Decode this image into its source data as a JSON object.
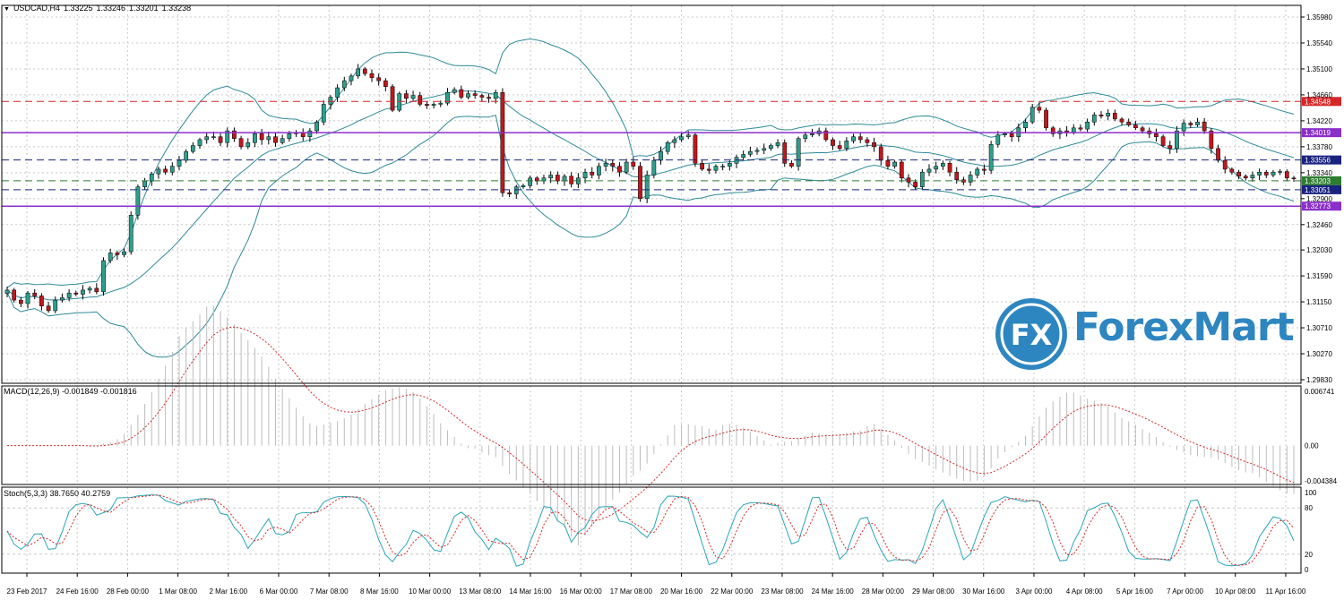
{
  "main_pane": {
    "symbol": "USDCAD,H4",
    "open": "1.33225",
    "high": "1.33246",
    "low": "1.33201",
    "close": "1.33238"
  },
  "macd_pane": {
    "label": "MACD(12,26,9) -0.001849 -0.001816"
  },
  "stoch_pane": {
    "label": "Stoch(5,3,3) 38.7650 40.2759"
  },
  "logo": {
    "brand": "ForexMart",
    "mark": "FX"
  },
  "colors": {
    "background": "#ffffff",
    "grid": "#c8c8c8",
    "bull_candle": "#2e9e8c",
    "bear_candle": "#c0171d",
    "bollinger": "#2e8b99",
    "resistance_red": "#d62728",
    "level_purple": "#8b2fc9",
    "level_navy": "#1a237e",
    "level_green": "#2e7d32",
    "macd_signal": "#d62728",
    "stoch_main": "#2aa6b8",
    "stoch_signal": "#d62728",
    "brand_blue": "#2e86c1"
  },
  "chart_data": [
    {
      "type": "candlestick",
      "title": "USDCAD,H4",
      "y_ticks": [
        "1.35980",
        "1.35540",
        "1.35100",
        "1.34660",
        "1.34220",
        "1.33780",
        "1.33340",
        "1.32900",
        "1.32460",
        "1.32030",
        "1.31590",
        "1.31150",
        "1.30710",
        "1.30270",
        "1.29830"
      ],
      "ylim": [
        1.2983,
        1.3598
      ],
      "x_ticks": [
        "23 Feb 2017",
        "24 Feb 16:00",
        "28 Feb 00:00",
        "1 Mar 08:00",
        "2 Mar 16:00",
        "6 Mar 00:00",
        "7 Mar 08:00",
        "8 Mar 16:00",
        "10 Mar 00:00",
        "13 Mar 08:00",
        "14 Mar 16:00",
        "16 Mar 00:00",
        "17 Mar 08:00",
        "20 Mar 16:00",
        "22 Mar 00:00",
        "23 Mar 08:00",
        "24 Mar 16:00",
        "28 Mar 00:00",
        "29 Mar 08:00",
        "30 Mar 16:00",
        "3 Apr 00:00",
        "4 Apr 08:00",
        "5 Apr 16:00",
        "7 Apr 00:00",
        "10 Apr 08:00",
        "11 Apr 16:00"
      ],
      "close_series": [
        1.3135,
        1.3118,
        1.3112,
        1.313,
        1.3125,
        1.3108,
        1.31,
        1.3118,
        1.3122,
        1.313,
        1.3128,
        1.3135,
        1.3138,
        1.3132,
        1.3185,
        1.3198,
        1.3195,
        1.32,
        1.3262,
        1.331,
        1.332,
        1.3332,
        1.334,
        1.3335,
        1.3345,
        1.3355,
        1.337,
        1.338,
        1.339,
        1.3395,
        1.3395,
        1.3385,
        1.3405,
        1.3392,
        1.3378,
        1.3385,
        1.34,
        1.339,
        1.3395,
        1.3385,
        1.3392,
        1.34,
        1.3402,
        1.3395,
        1.3405,
        1.342,
        1.345,
        1.3462,
        1.3478,
        1.349,
        1.3498,
        1.351,
        1.3502,
        1.3495,
        1.349,
        1.348,
        1.344,
        1.3468,
        1.346,
        1.3465,
        1.345,
        1.3448,
        1.345,
        1.3452,
        1.347,
        1.3475,
        1.3462,
        1.3468,
        1.3465,
        1.3462,
        1.346,
        1.347,
        1.33,
        1.3298,
        1.331,
        1.3312,
        1.3325,
        1.332,
        1.3325,
        1.333,
        1.332,
        1.3328,
        1.3315,
        1.3325,
        1.3335,
        1.333,
        1.3345,
        1.335,
        1.3345,
        1.3335,
        1.3352,
        1.3345,
        1.329,
        1.333,
        1.3355,
        1.337,
        1.3385,
        1.339,
        1.3395,
        1.3398,
        1.335,
        1.334,
        1.3338,
        1.3345,
        1.3345,
        1.335,
        1.336,
        1.3365,
        1.337,
        1.3372,
        1.3375,
        1.338,
        1.3385,
        1.335,
        1.3345,
        1.3392,
        1.3398,
        1.34,
        1.3405,
        1.339,
        1.338,
        1.3375,
        1.3388,
        1.3395,
        1.339,
        1.3385,
        1.3378,
        1.3355,
        1.3345,
        1.3352,
        1.3325,
        1.3318,
        1.331,
        1.3335,
        1.334,
        1.3345,
        1.335,
        1.3335,
        1.3322,
        1.3318,
        1.333,
        1.334,
        1.3338,
        1.3382,
        1.3398,
        1.34,
        1.3395,
        1.341,
        1.342,
        1.3445,
        1.344,
        1.341,
        1.34,
        1.3405,
        1.3402,
        1.341,
        1.3408,
        1.342,
        1.3432,
        1.343,
        1.3435,
        1.3425,
        1.342,
        1.3415,
        1.341,
        1.3405,
        1.34,
        1.3395,
        1.338,
        1.3375,
        1.3405,
        1.3418,
        1.3415,
        1.342,
        1.3405,
        1.3375,
        1.3355,
        1.334,
        1.3335,
        1.3328,
        1.3325,
        1.333,
        1.3335,
        1.333,
        1.3335,
        1.3336,
        1.3325,
        1.3324
      ],
      "levels": [
        {
          "value": "1.34548",
          "kind": "dashed",
          "color": "#d62728"
        },
        {
          "value": "1.34019",
          "kind": "solid",
          "color": "#8b2fc9"
        },
        {
          "value": "1.33556",
          "kind": "dashed",
          "color": "#1a237e"
        },
        {
          "value": "1.33203",
          "kind": "dashed",
          "color": "#2e7d32"
        },
        {
          "value": "1.33051",
          "kind": "dashed",
          "color": "#1a237e"
        },
        {
          "value": "1.32773",
          "kind": "solid",
          "color": "#8b2fc9"
        }
      ]
    },
    {
      "type": "histogram",
      "title": "MACD(12,26,9) -0.001849 -0.001816",
      "y_ticks": [
        "0.006741",
        "0.00",
        "-0.004384"
      ],
      "ylim": [
        -0.004384,
        0.006741
      ]
    },
    {
      "type": "line",
      "title": "Stoch(5,3,3) 38.7650 40.2759",
      "y_ticks": [
        "100",
        "80",
        "20",
        "0"
      ],
      "ylim": [
        0,
        100
      ]
    }
  ]
}
